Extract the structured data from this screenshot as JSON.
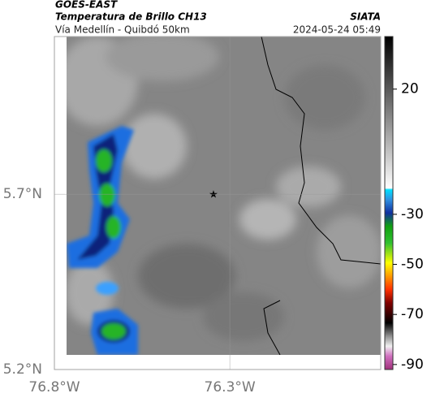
{
  "header": {
    "title": "GOES-EAST",
    "subtitle": "Temperatura de Brillo CH13",
    "source": "SIATA",
    "route": "Vía Medellín - Quibdó 50km",
    "timestamp": "2024-05-24 05:49"
  },
  "map": {
    "xlim": [
      -76.8,
      -75.87
    ],
    "ylim": [
      5.2,
      6.15
    ],
    "xticks": [
      {
        "value": -76.8,
        "label": "76.8°W"
      },
      {
        "value": -76.3,
        "label": "76.3°W"
      }
    ],
    "yticks": [
      {
        "value": 5.7,
        "label": "5.7°N"
      },
      {
        "value": 5.2,
        "label": "5.2°N"
      }
    ]
  },
  "colorbar": {
    "lim": [
      -92,
      41
    ],
    "ticks": [
      20,
      -30,
      -50,
      -70,
      -90
    ]
  }
}
